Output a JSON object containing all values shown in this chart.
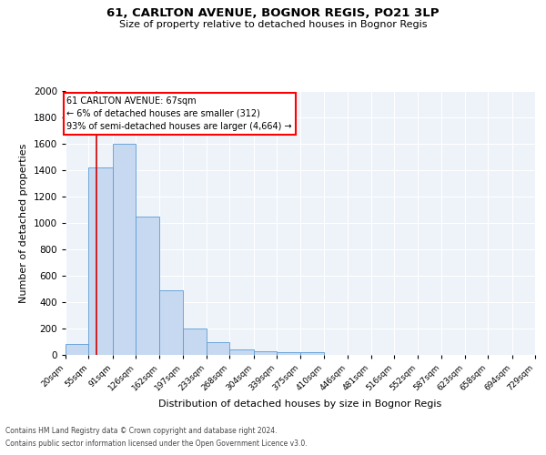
{
  "title": "61, CARLTON AVENUE, BOGNOR REGIS, PO21 3LP",
  "subtitle": "Size of property relative to detached houses in Bognor Regis",
  "xlabel": "Distribution of detached houses by size in Bognor Regis",
  "ylabel": "Number of detached properties",
  "footnote1": "Contains HM Land Registry data © Crown copyright and database right 2024.",
  "footnote2": "Contains public sector information licensed under the Open Government Licence v3.0.",
  "annotation_title": "61 CARLTON AVENUE: 67sqm",
  "annotation_line1": "← 6% of detached houses are smaller (312)",
  "annotation_line2": "93% of semi-detached houses are larger (4,664) →",
  "property_size": 67,
  "bar_color": "#c6d9f0",
  "bar_edge_color": "#5b9bd5",
  "red_line_color": "#cc0000",
  "background_color": "#ffffff",
  "plot_bg_color": "#eef3fa",
  "grid_color": "#ffffff",
  "bin_edges": [
    20,
    55,
    91,
    126,
    162,
    197,
    233,
    268,
    304,
    339,
    375,
    410,
    446,
    481,
    516,
    552,
    587,
    623,
    658,
    694,
    729
  ],
  "bar_heights": [
    80,
    1420,
    1600,
    1050,
    490,
    200,
    100,
    40,
    30,
    20,
    20,
    0,
    0,
    0,
    0,
    0,
    0,
    0,
    0,
    0
  ],
  "ylim": [
    0,
    2000
  ],
  "yticks": [
    0,
    200,
    400,
    600,
    800,
    1000,
    1200,
    1400,
    1600,
    1800,
    2000
  ]
}
